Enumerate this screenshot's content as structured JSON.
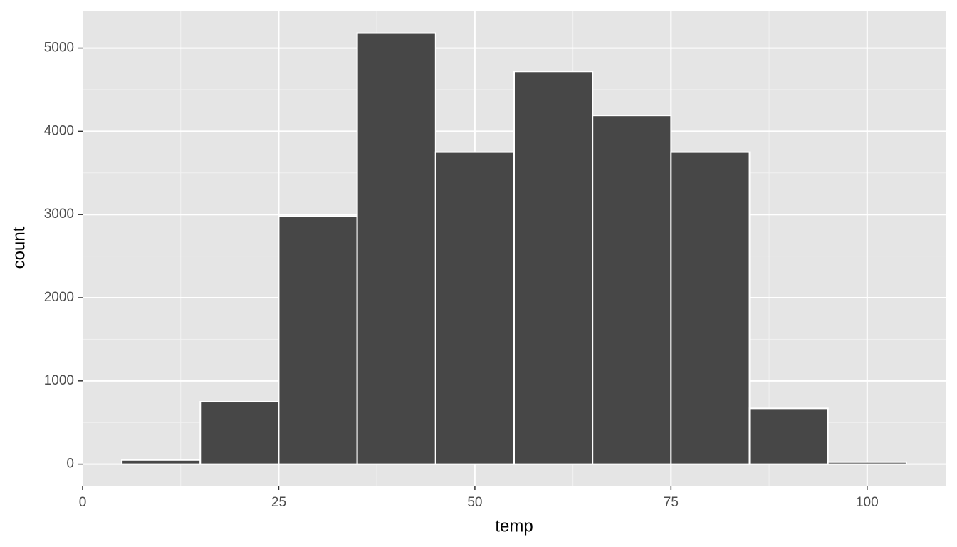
{
  "chart_data": {
    "type": "histogram",
    "x_label": "temp",
    "y_label": "count",
    "bins": [
      5,
      15,
      25,
      35,
      45,
      55,
      65,
      75,
      85,
      95,
      105
    ],
    "values": [
      50,
      750,
      2980,
      5180,
      3750,
      4720,
      4190,
      3750,
      670,
      25
    ],
    "color": "#474747",
    "xlim": [
      0,
      110
    ],
    "xticks": [
      0,
      25,
      50,
      75,
      100
    ],
    "ylim": [
      -260,
      5450
    ],
    "yticks": [
      0,
      1000,
      2000,
      3000,
      4000,
      5000
    ],
    "grid": true
  }
}
